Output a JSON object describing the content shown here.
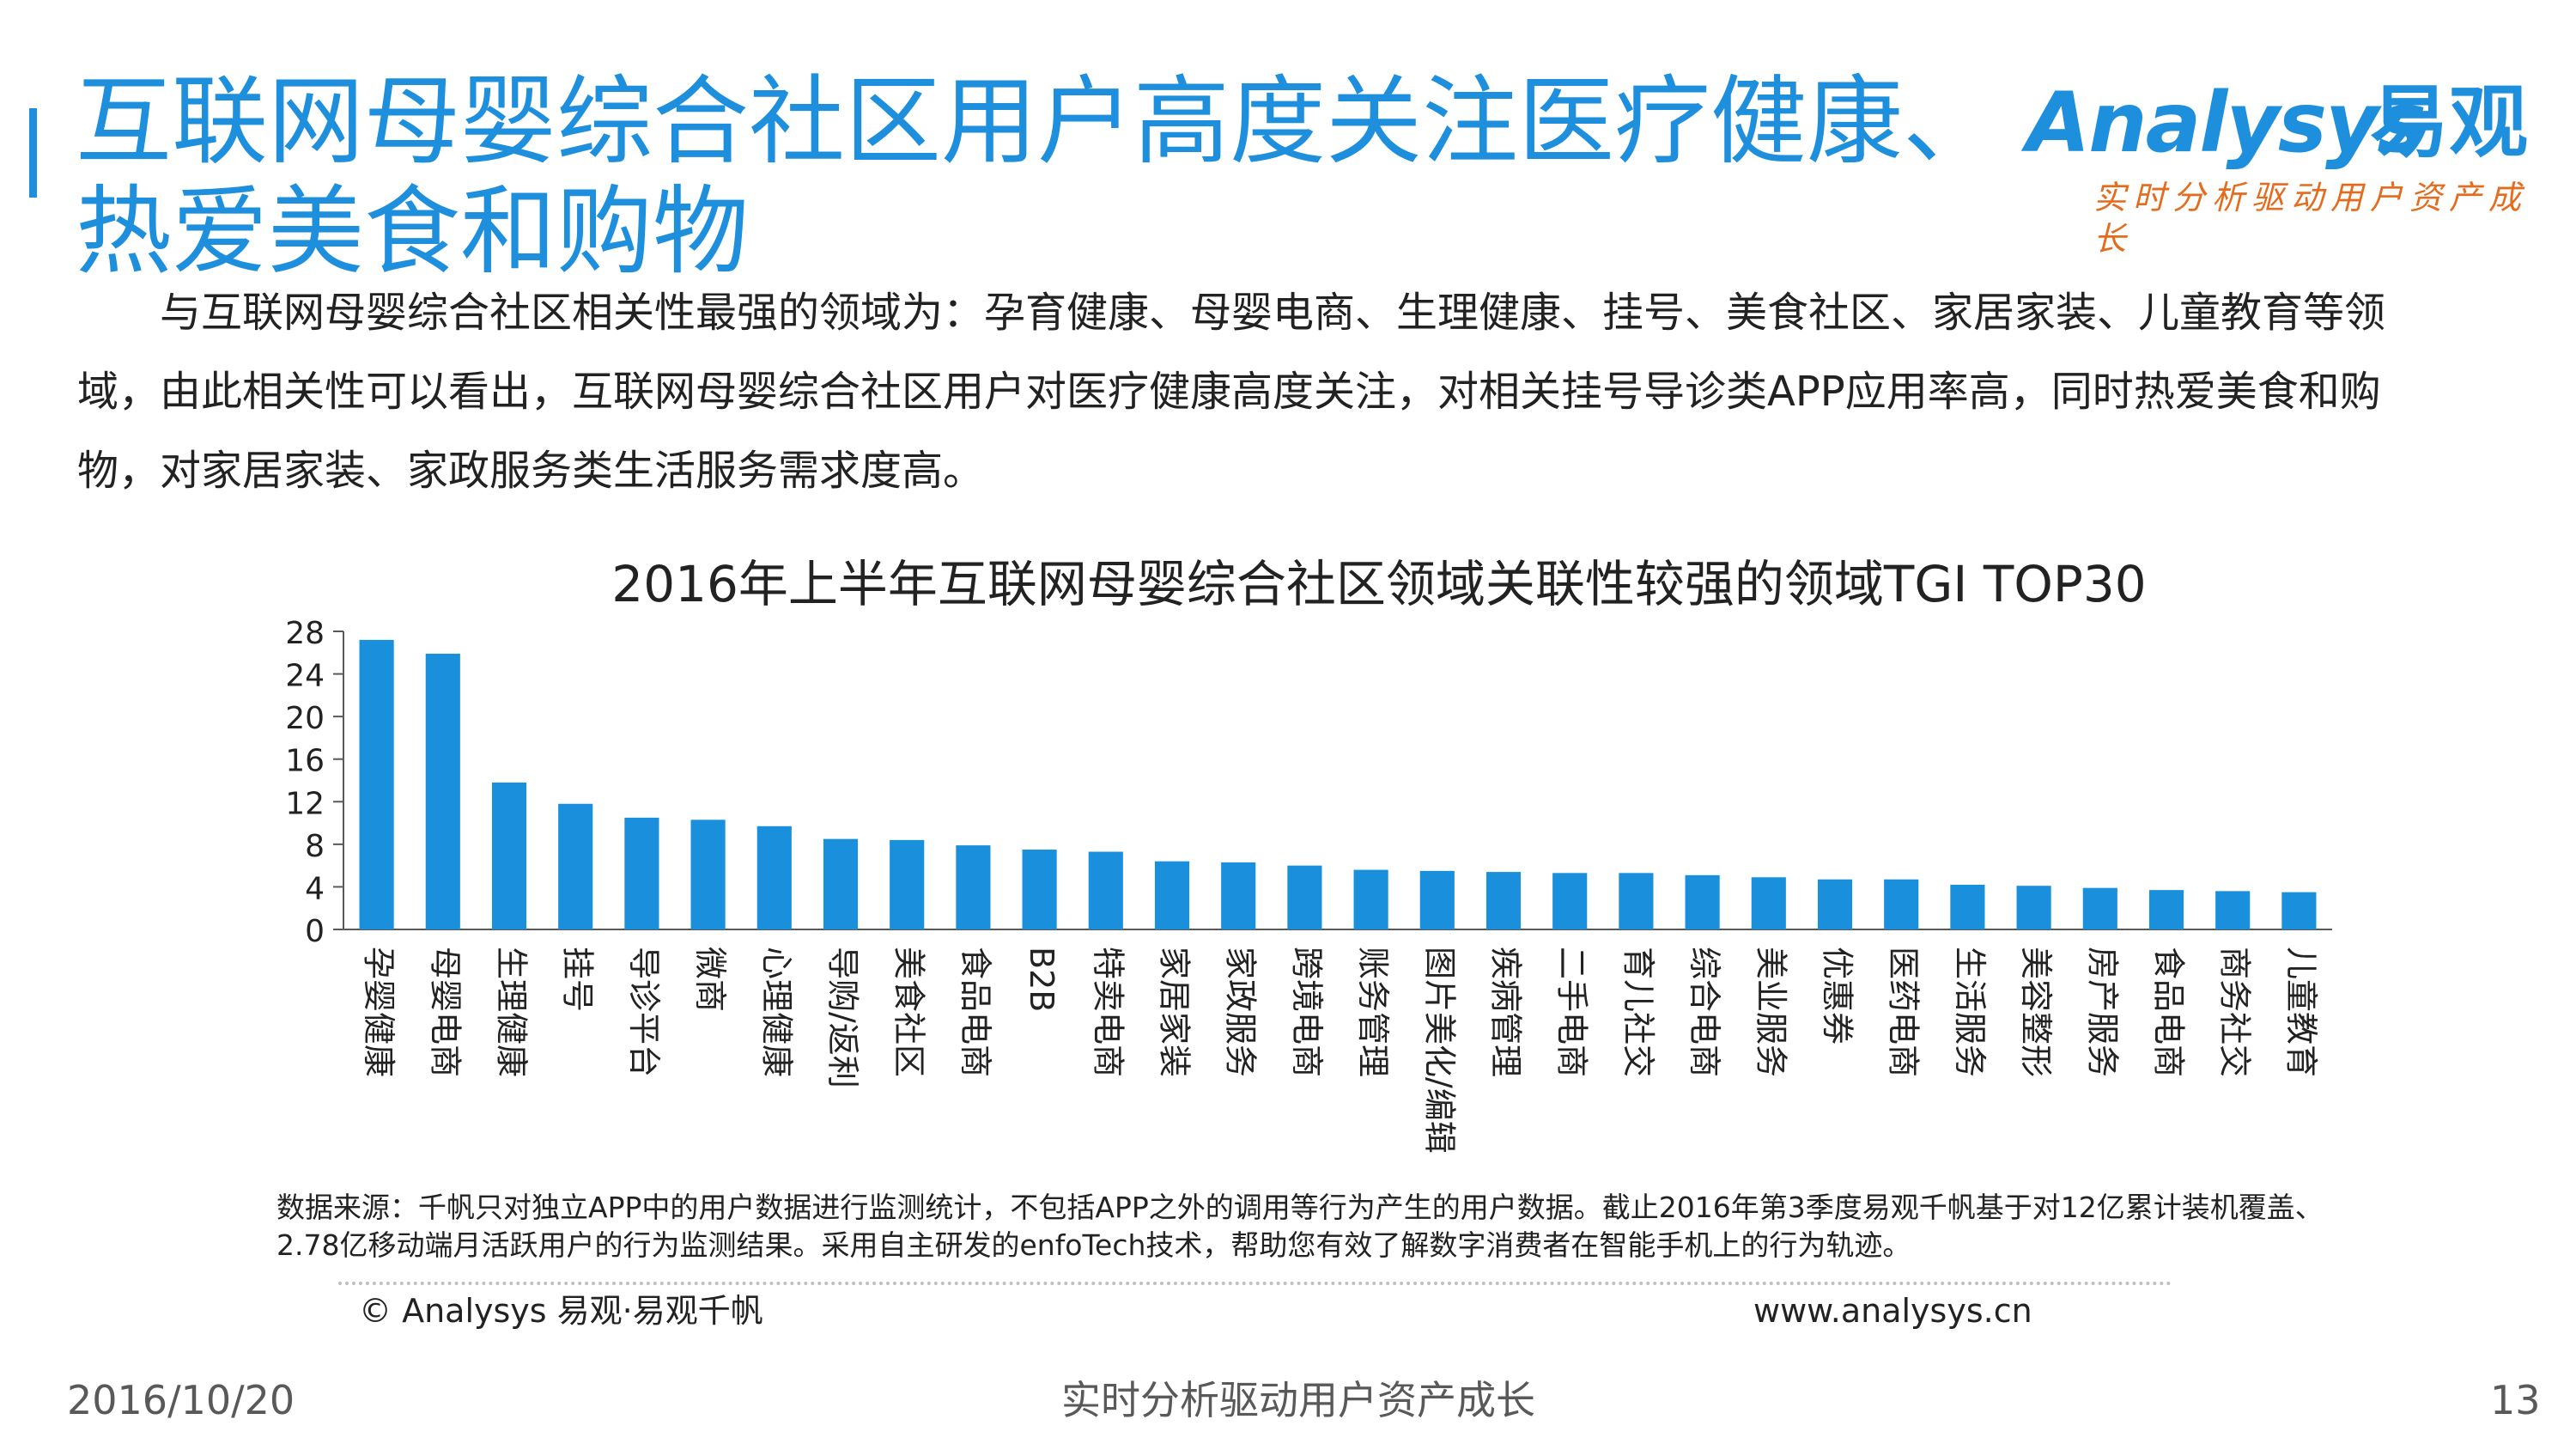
{
  "colors": {
    "accent": "#1E8FDD",
    "bar": "#1A8FDB",
    "slogan": "#E36C1E",
    "axis": "#595959"
  },
  "slide": {
    "title": "互联网母婴综合社区用户高度关注医疗健康、热爱美食和购物",
    "intro": "与互联网母婴综合社区相关性最强的领域为：孕育健康、母婴电商、生理健康、挂号、美食社区、家居家装、儿童教育等领域，由此相关性可以看出，互联网母婴综合社区用户对医疗健康高度关注，对相关挂号导诊类APP应用率高，同时热爱美食和购物，对家居家装、家政服务类生活服务需求度高。",
    "footnote": "数据来源：千帆只对独立APP中的用户数据进行监测统计，不包括APP之外的调用等行为产生的用户数据。截止2016年第3季度易观千帆基于对12亿累计装机覆盖、2.78亿移动端月活跃用户的行为监测结果。采用自主研发的enfoTech技术，帮助您有效了解数字消费者在智能手机上的行为轨迹。",
    "copyright": "© Analysys 易观·易观千帆",
    "website": "www.analysys.cn"
  },
  "logo": {
    "en": "Analysys",
    "cn": "易观",
    "slogan": "实时分析驱动用户资产成长"
  },
  "footer": {
    "date": "2016/10/20",
    "slogan": "实时分析驱动用户资产成长",
    "page": "13"
  },
  "chart_data": {
    "type": "bar",
    "title": "2016年上半年互联网母婴综合社区领域关联性较强的领域TGI TOP30",
    "xlabel": "",
    "ylabel": "",
    "ylim": [
      0,
      28
    ],
    "yticks": [
      0,
      4,
      8,
      12,
      16,
      20,
      24,
      28
    ],
    "grid": false,
    "legend": "none",
    "categories": [
      "孕婴健康",
      "母婴电商",
      "生理健康",
      "挂号",
      "导诊平台",
      "微商",
      "心理健康",
      "导购/返利",
      "美食社区",
      "食品电商",
      "B2B",
      "特卖电商",
      "家居家装",
      "家政服务",
      "跨境电商",
      "账务管理",
      "图片美化/编辑",
      "疾病管理",
      "二手电商",
      "育儿社交",
      "综合电商",
      "美业服务",
      "优惠券",
      "医药电商",
      "生活服务",
      "美容整形",
      "房产服务",
      "食品电商",
      "商务社交",
      "儿童教育"
    ],
    "values": [
      27.2,
      25.9,
      13.8,
      11.8,
      10.5,
      10.3,
      9.7,
      8.5,
      8.4,
      7.9,
      7.5,
      7.3,
      6.4,
      6.3,
      6.0,
      5.6,
      5.5,
      5.4,
      5.3,
      5.3,
      5.1,
      4.9,
      4.7,
      4.7,
      4.2,
      4.1,
      3.9,
      3.7,
      3.6,
      3.5
    ]
  }
}
